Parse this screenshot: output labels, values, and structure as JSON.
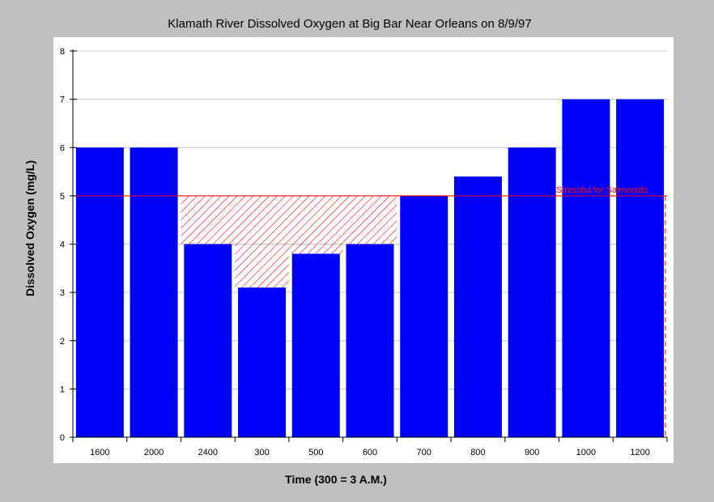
{
  "chart_data": {
    "type": "bar",
    "title": "Klamath River Dissolved Oxygen at Big Bar Near Orleans on 8/9/97",
    "xlabel": "Time (300 = 3 A.M.)",
    "ylabel": "Dissolved Oxygen (mg/L)",
    "categories": [
      "1600",
      "2000",
      "2400",
      "300",
      "500",
      "600",
      "700",
      "800",
      "900",
      "1000",
      "1200"
    ],
    "values": [
      6,
      6,
      4,
      3.1,
      3.8,
      4,
      5,
      5.4,
      6,
      7,
      7
    ],
    "ylim": [
      0,
      8
    ],
    "yticks": [
      0,
      1,
      2,
      3,
      4,
      5,
      6,
      7,
      8
    ],
    "grid": true,
    "threshold": {
      "value": 5,
      "label": "Stressful for Salmonids",
      "color": "#ff0000"
    },
    "colors": {
      "bar": "#0000ff",
      "background": "#c0c0c0",
      "plot": "#ffffff",
      "hatch": "#ff0000"
    }
  }
}
